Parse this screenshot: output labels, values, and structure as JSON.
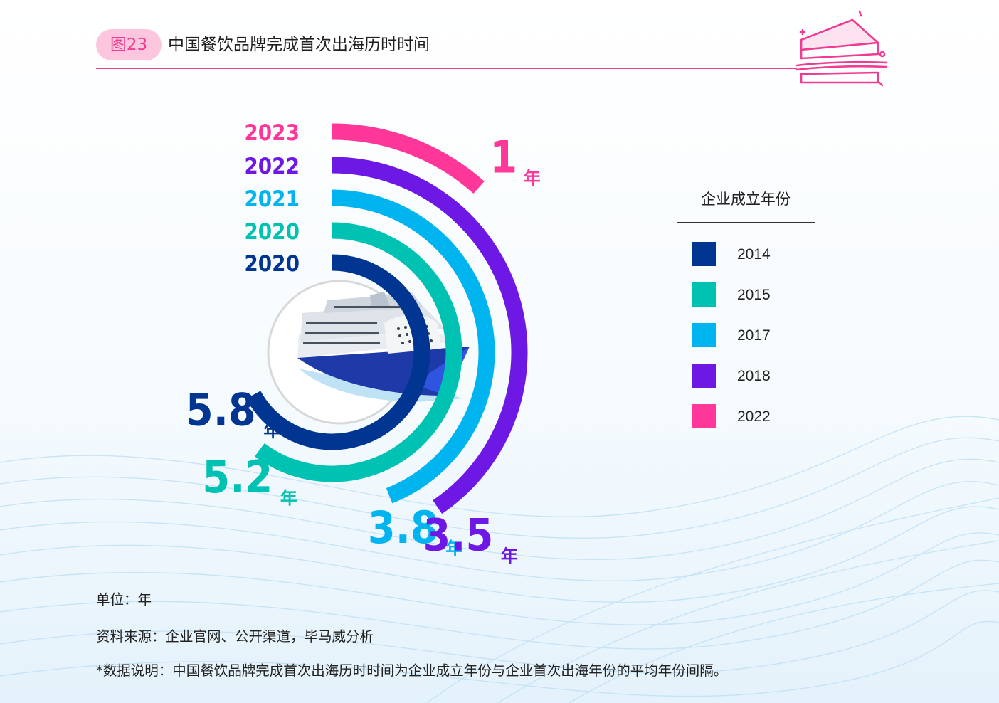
{
  "header": {
    "figure_tag": "图23",
    "title": "中国餐饮品牌完成首次出海历时时间"
  },
  "colors": {
    "accent": "#ef3c91",
    "tag_bg": "#fbc6de",
    "series": [
      "#003591",
      "#00c2b2",
      "#00b4f0",
      "#6e18e6",
      "#ff3799"
    ]
  },
  "chart_data": {
    "type": "radial-bar",
    "title": "",
    "unit_suffix": "年",
    "legend_title": "企业成立年份",
    "legend_position": "right",
    "series": [
      {
        "name": "2014",
        "first_overseas_year": "2020",
        "value": 5.8,
        "color": "#003591"
      },
      {
        "name": "2015",
        "first_overseas_year": "2020",
        "value": 5.2,
        "color": "#00c2b2"
      },
      {
        "name": "2017",
        "first_overseas_year": "2021",
        "value": 3.8,
        "color": "#00b4f0"
      },
      {
        "name": "2018",
        "first_overseas_year": "2022",
        "value": 3.5,
        "color": "#6e18e6"
      },
      {
        "name": "2022",
        "first_overseas_year": "2023",
        "value": 1,
        "color": "#ff3799"
      }
    ]
  },
  "footnotes": {
    "unit": "单位：年",
    "source": "资料来源：企业官网、公开渠道，毕马威分析",
    "note": "*数据说明：中国餐饮品牌完成首次出海历时时间为企业成立年份与企业首次出海年份的平均年份间隔。"
  }
}
